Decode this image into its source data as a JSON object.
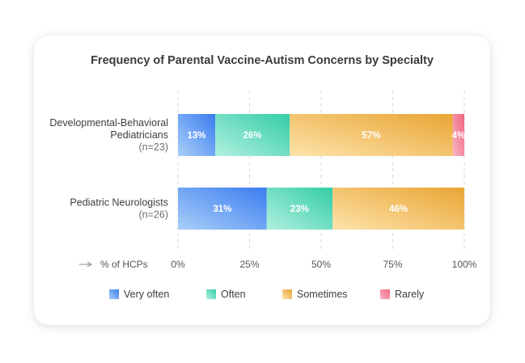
{
  "chart_data": {
    "type": "bar",
    "orientation": "horizontal",
    "stacked": true,
    "title": "Frequency of Parental Vaccine-Autism Concerns by Specialty",
    "categories": [
      {
        "name": "Developmental-Behavioral",
        "name2": "Pediatricians",
        "n": "(n=23)"
      },
      {
        "name": "Pediatric Neurologists",
        "name2": "",
        "n": "(n=26)"
      }
    ],
    "series": [
      {
        "name": "Very often",
        "values": [
          13,
          31
        ],
        "labels": [
          "13%",
          "31%"
        ],
        "color": "#3b7cf0",
        "color_light": "#a9cff8"
      },
      {
        "name": "Often",
        "values": [
          26,
          23
        ],
        "labels": [
          "26%",
          "23%"
        ],
        "color": "#33cda6",
        "color_light": "#b2f0e0"
      },
      {
        "name": "Sometimes",
        "values": [
          57,
          46
        ],
        "labels": [
          "57%",
          "46%"
        ],
        "color": "#e9a534",
        "color_light": "#fde3ab"
      },
      {
        "name": "Rarely",
        "values": [
          4,
          0
        ],
        "labels": [
          "4%",
          ""
        ],
        "color": "#ee6580",
        "color_light": "#f9b5c2"
      }
    ],
    "xlabel": "% of HCPs",
    "xlim": [
      0,
      100
    ],
    "xticks": [
      "0%",
      "25%",
      "50%",
      "75%",
      "100%"
    ],
    "grid": true,
    "legend_position": "bottom"
  }
}
